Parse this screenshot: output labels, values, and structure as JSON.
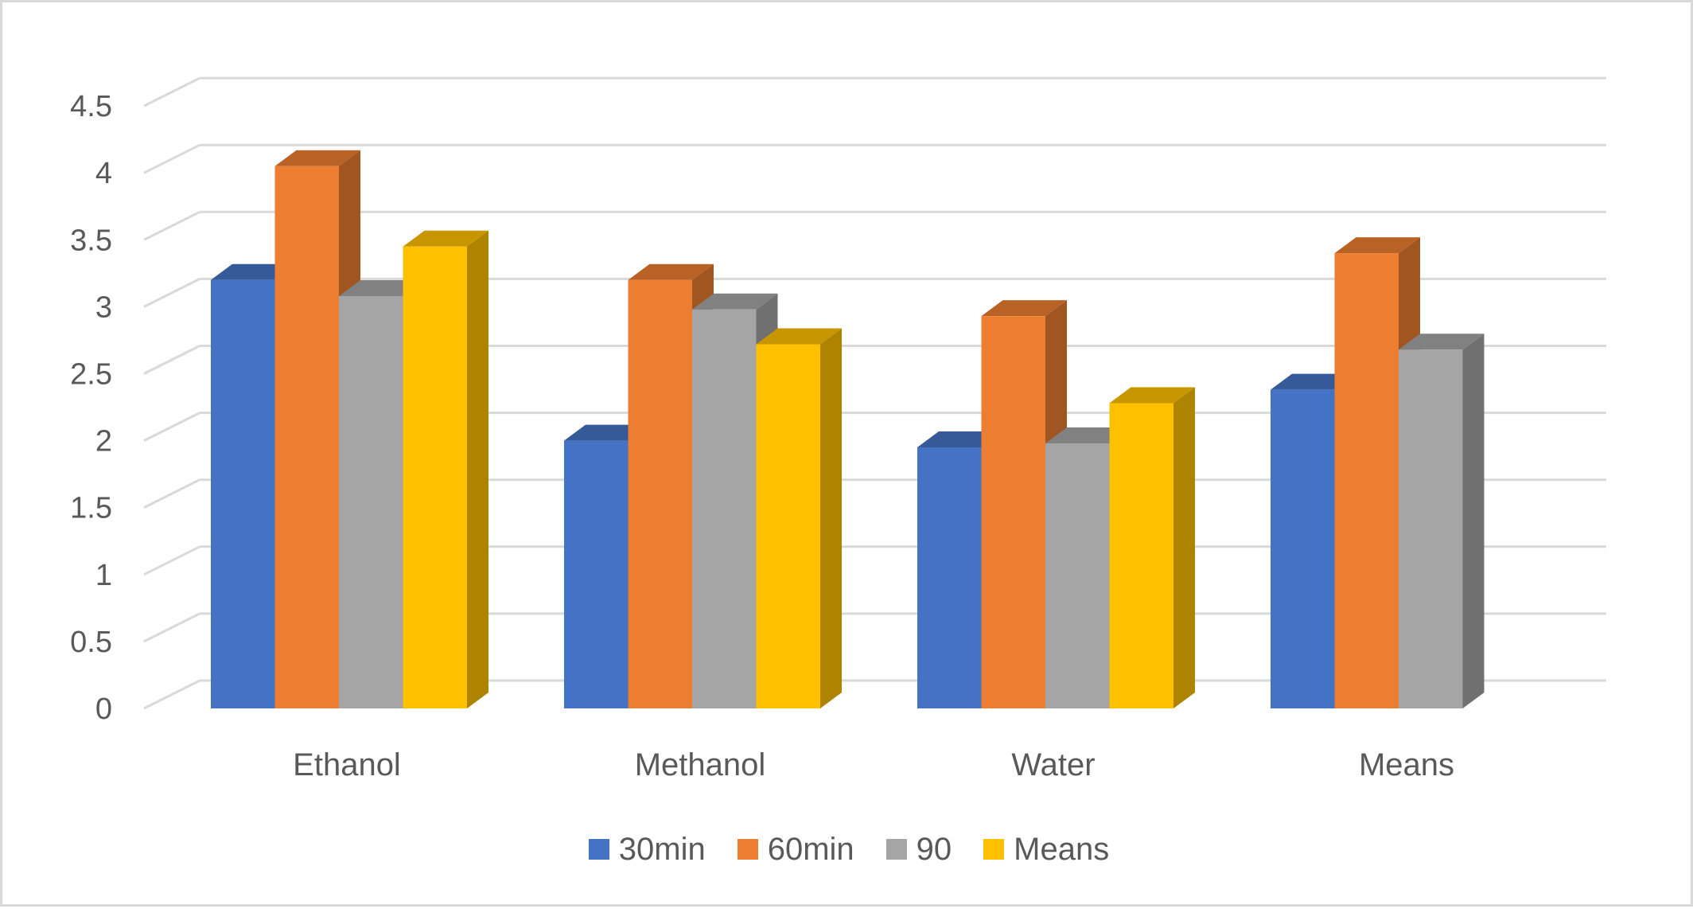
{
  "chart_data": {
    "type": "bar",
    "style": "3d-clustered-column",
    "title": "",
    "xlabel": "",
    "ylabel": "",
    "categories": [
      "Ethanol",
      "Methanol",
      "Water",
      "Means"
    ],
    "series": [
      {
        "name": "30min",
        "color": "#4472c4",
        "values": [
          3.2,
          2.0,
          1.95,
          2.38
        ]
      },
      {
        "name": "60min",
        "color": "#ed7d31",
        "values": [
          4.05,
          3.2,
          2.93,
          3.4
        ]
      },
      {
        "name": "90",
        "color": "#a5a5a5",
        "values": [
          3.08,
          2.98,
          1.98,
          2.68
        ]
      },
      {
        "name": "Means",
        "color": "#ffc000",
        "values": [
          3.45,
          2.72,
          2.28,
          null
        ]
      }
    ],
    "ylim": [
      0,
      4.5
    ],
    "yticks": [
      "0",
      "0.5",
      "1",
      "1.5",
      "2",
      "2.5",
      "3",
      "3.5",
      "4",
      "4.5"
    ],
    "grid": true,
    "legend": "bottom"
  }
}
